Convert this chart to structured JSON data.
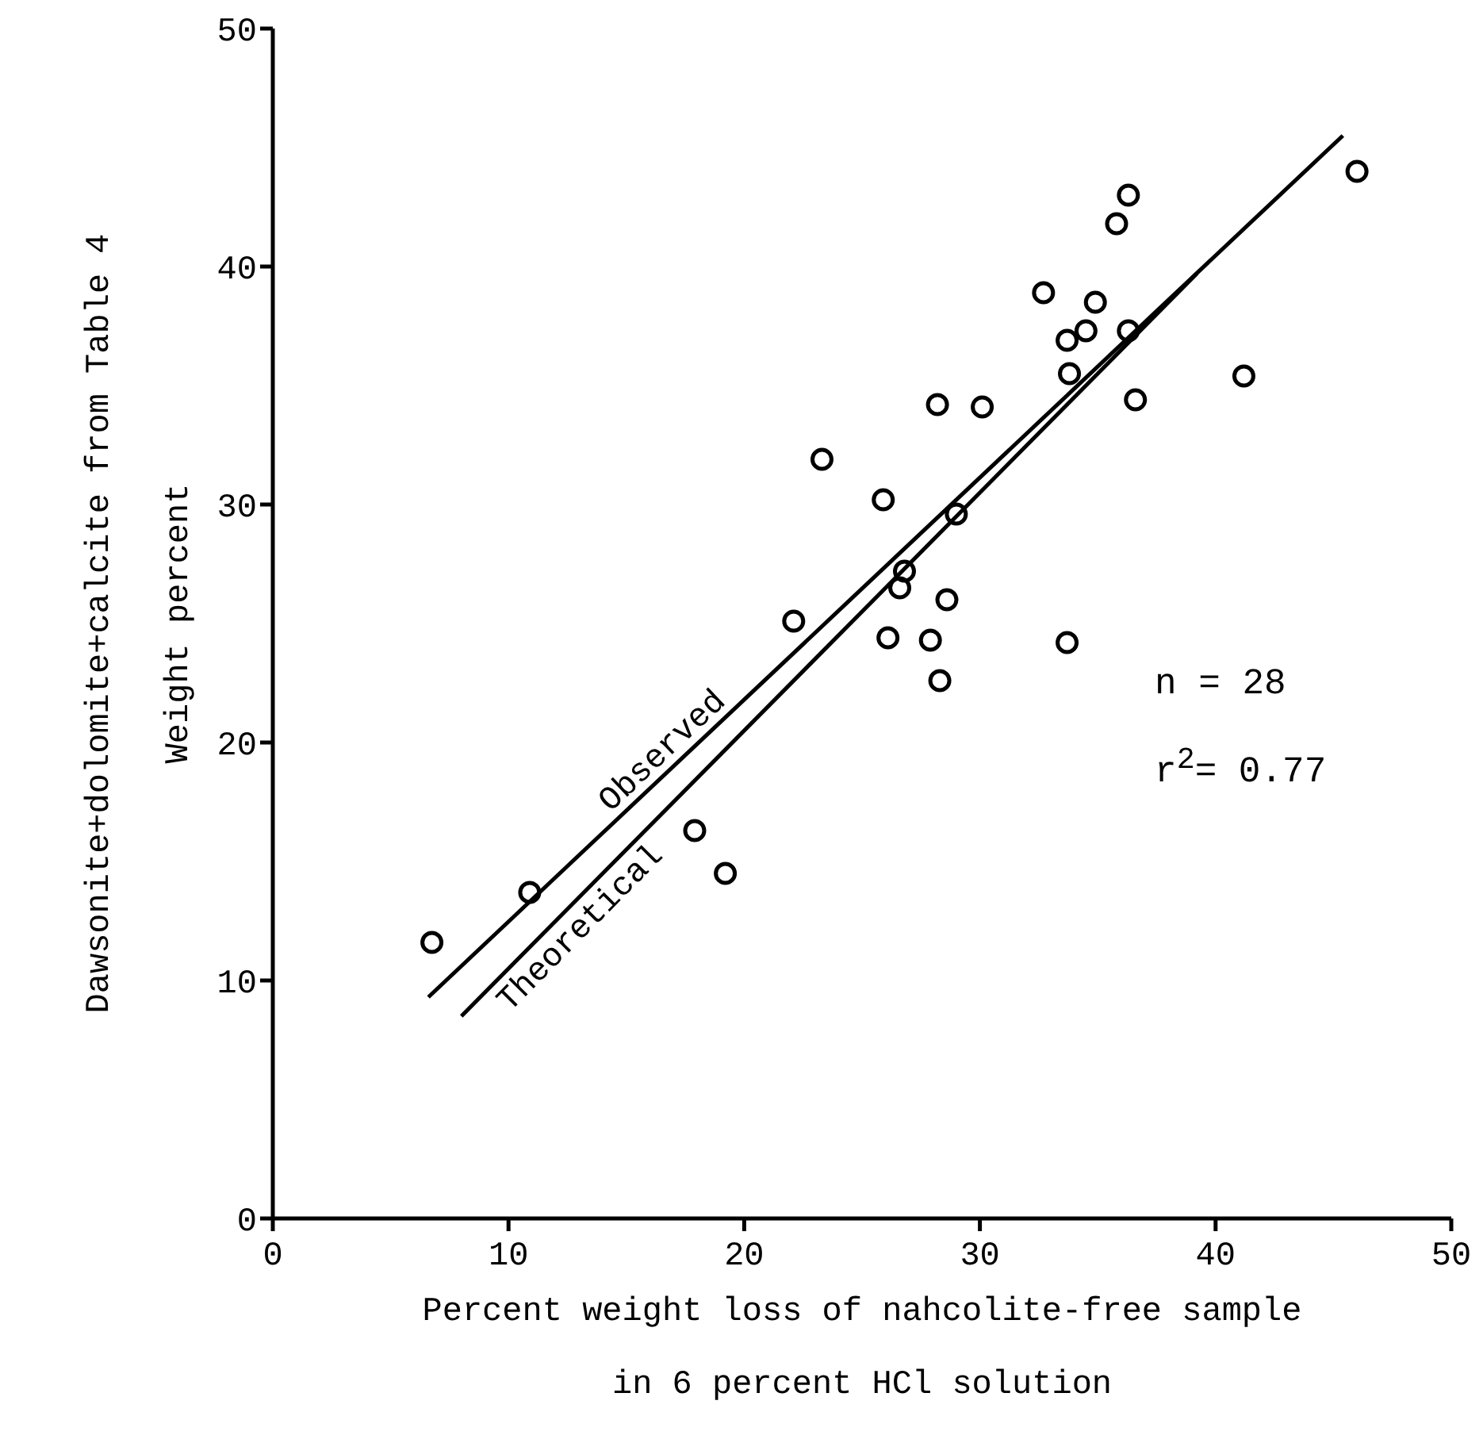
{
  "chart_data": {
    "type": "scatter",
    "xlabel": "Percent weight loss of nahcolite-free sample\nin 6 percent HCl solution",
    "ylabel": "Dawsonite+dolomite+calcite from Table 4\nWeight percent",
    "xlim": [
      0,
      50
    ],
    "xticks": [
      0,
      10,
      20,
      30,
      40,
      50
    ],
    "ylim": [
      0,
      50
    ],
    "yticks": [
      0,
      10,
      20,
      30,
      40,
      50
    ],
    "grid": false,
    "legend": false,
    "marker": "circle",
    "x": [
      6.75,
      10.9,
      17.9,
      19.2,
      28.2,
      30.1,
      23.3,
      25.9,
      29.0,
      26.8,
      26.6,
      28.6,
      22.1,
      26.1,
      27.9,
      28.3,
      46.0,
      36.3,
      35.8,
      32.7,
      34.9,
      34.5,
      33.7,
      36.3,
      33.8,
      36.6,
      41.2,
      33.7
    ],
    "series": [
      {
        "color": "#000000",
        "values": [
          11.6,
          13.7,
          16.3,
          14.5,
          34.2,
          34.1,
          31.9,
          30.2,
          29.6,
          27.2,
          26.5,
          26.0,
          25.1,
          24.4,
          24.3,
          22.6,
          44.0,
          43.0,
          41.8,
          38.9,
          38.5,
          37.3,
          36.9,
          37.3,
          35.5,
          34.4,
          35.4,
          24.2
        ]
      },
      {
        "type": "line",
        "name": "Observed",
        "color": "#000000",
        "x": [
          6.6,
          45.4
        ],
        "values": [
          9.3,
          45.5
        ],
        "marker": "none",
        "line_style": "solid"
      },
      {
        "type": "line",
        "name": "Theoretical",
        "color": "#000000",
        "x": [
          8.0,
          39.2
        ],
        "values": [
          8.5,
          39.7
        ],
        "marker": "none",
        "line_style": "solid"
      }
    ],
    "annotations": [
      "n = 28",
      "r$^{2}$= 0.77"
    ]
  }
}
